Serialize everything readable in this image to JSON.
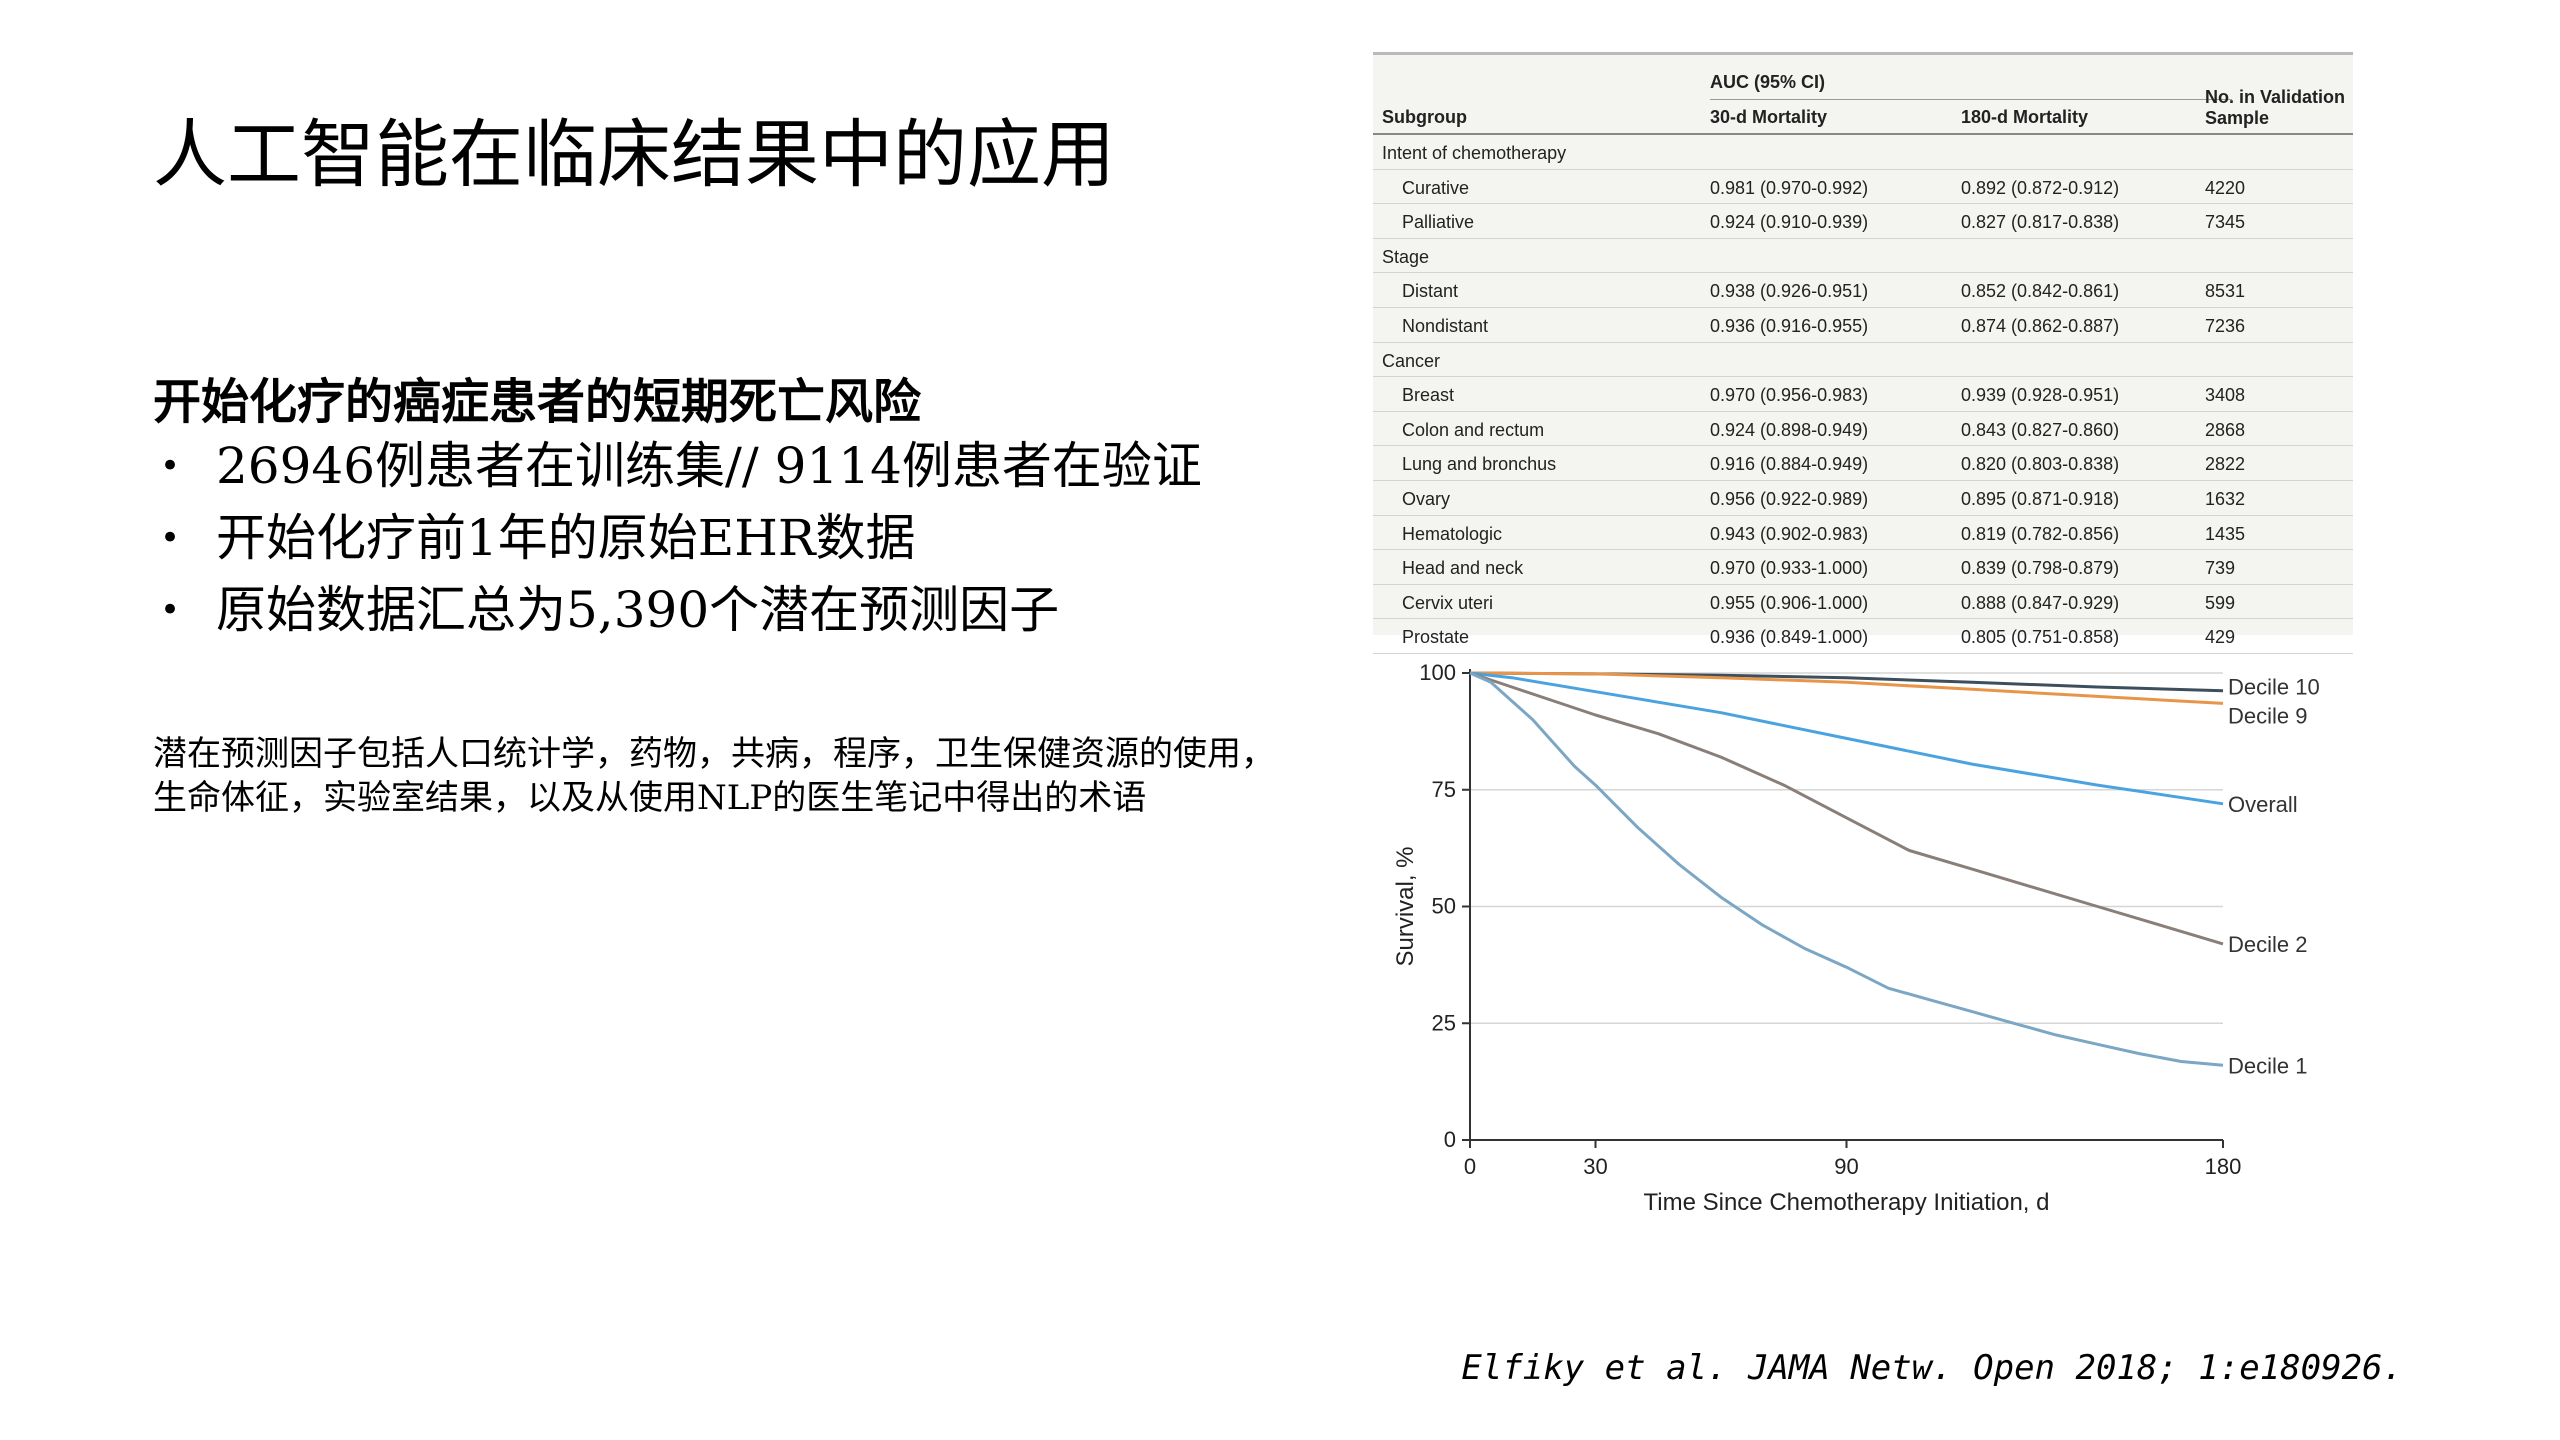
{
  "slide": {
    "title": "人工智能在临床结果中的应用",
    "subhead": "开始化疗的癌症患者的短期死亡风险",
    "bullets": [
      "26946例患者在训练集// 9114例患者在验证",
      "开始化疗前1年的原始EHR数据",
      "原始数据汇总为5,390个潜在预测因子"
    ],
    "bullet_marker": "•",
    "note": "潜在预测因子包括人口统计学，药物，共病，程序，卫生保健资源的使用，生命体征，实验室结果，以及从使用NLP的医生笔记中得出的术语",
    "citation": "Elfiky et al. JAMA Netw. Open 2018; 1:e180926."
  },
  "table": {
    "group_header": "AUC (95% CI)",
    "headers": [
      "Subgroup",
      "30-d Mortality",
      "180-d Mortality",
      "No. in Validation Sample"
    ],
    "rows": [
      {
        "category": "Intent of chemotherapy"
      },
      {
        "cells": [
          "Curative",
          "0.981 (0.970-0.992)",
          "0.892 (0.872-0.912)",
          "4220"
        ]
      },
      {
        "cells": [
          "Palliative",
          "0.924 (0.910-0.939)",
          "0.827 (0.817-0.838)",
          "7345"
        ]
      },
      {
        "category": "Stage"
      },
      {
        "cells": [
          "Distant",
          "0.938 (0.926-0.951)",
          "0.852 (0.842-0.861)",
          "8531"
        ]
      },
      {
        "cells": [
          "Nondistant",
          "0.936 (0.916-0.955)",
          "0.874 (0.862-0.887)",
          "7236"
        ]
      },
      {
        "category": "Cancer"
      },
      {
        "cells": [
          "Breast",
          "0.970 (0.956-0.983)",
          "0.939 (0.928-0.951)",
          "3408"
        ]
      },
      {
        "cells": [
          "Colon and rectum",
          "0.924 (0.898-0.949)",
          "0.843 (0.827-0.860)",
          "2868"
        ]
      },
      {
        "cells": [
          "Lung and bronchus",
          "0.916 (0.884-0.949)",
          "0.820 (0.803-0.838)",
          "2822"
        ]
      },
      {
        "cells": [
          "Ovary",
          "0.956 (0.922-0.989)",
          "0.895 (0.871-0.918)",
          "1632"
        ]
      },
      {
        "cells": [
          "Hematologic",
          "0.943 (0.902-0.983)",
          "0.819 (0.782-0.856)",
          "1435"
        ]
      },
      {
        "cells": [
          "Head and neck",
          "0.970 (0.933-1.000)",
          "0.839 (0.798-0.879)",
          "739"
        ]
      },
      {
        "cells": [
          "Cervix uteri",
          "0.955 (0.906-1.000)",
          "0.888 (0.847-0.929)",
          "599"
        ]
      },
      {
        "cells": [
          "Prostate",
          "0.936 (0.849-1.000)",
          "0.805 (0.751-0.858)",
          "429"
        ]
      }
    ]
  },
  "chart_data": {
    "type": "line",
    "xlabel": "Time Since Chemotherapy Initiation, d",
    "ylabel": "Survival, %",
    "xlim": [
      0,
      180
    ],
    "ylim": [
      0,
      100
    ],
    "xticks": [
      0,
      30,
      90,
      180
    ],
    "yticks": [
      0,
      25,
      50,
      75,
      100
    ],
    "grid": "horizontal",
    "legend": "labels at right end of lines",
    "series": [
      {
        "name": "Decile 10",
        "color": "#3d4f5c",
        "x": [
          0,
          30,
          60,
          90,
          120,
          150,
          180
        ],
        "y": [
          100,
          99.8,
          99.5,
          99,
          98,
          97,
          96.2
        ]
      },
      {
        "name": "Decile 9",
        "color": "#e8954a",
        "x": [
          0,
          30,
          60,
          90,
          120,
          150,
          180
        ],
        "y": [
          100,
          99.8,
          99,
          98,
          96.5,
          95,
          93.5
        ]
      },
      {
        "name": "Overall",
        "color": "#4aa3df",
        "x": [
          0,
          10,
          30,
          60,
          90,
          120,
          150,
          180
        ],
        "y": [
          100,
          99,
          96,
          91.5,
          86,
          80.5,
          76,
          72
        ]
      },
      {
        "name": "Decile 2",
        "color": "#8a7f78",
        "x": [
          0,
          10,
          20,
          30,
          45,
          60,
          75,
          90,
          105,
          120,
          135,
          150,
          165,
          180
        ],
        "y": [
          100,
          97,
          94,
          91,
          87,
          82,
          76,
          69,
          62,
          58,
          54,
          50,
          46,
          42
        ]
      },
      {
        "name": "Decile 1",
        "color": "#7ba6c4",
        "x": [
          0,
          5,
          10,
          15,
          20,
          25,
          30,
          40,
          50,
          60,
          70,
          80,
          90,
          100,
          110,
          120,
          130,
          140,
          150,
          160,
          170,
          180
        ],
        "y": [
          100,
          98,
          94,
          90,
          85,
          80,
          76,
          67,
          59,
          52,
          46,
          41,
          37,
          32.5,
          30,
          27.5,
          25,
          22.5,
          20.5,
          18.5,
          16.8,
          16
        ]
      }
    ]
  }
}
